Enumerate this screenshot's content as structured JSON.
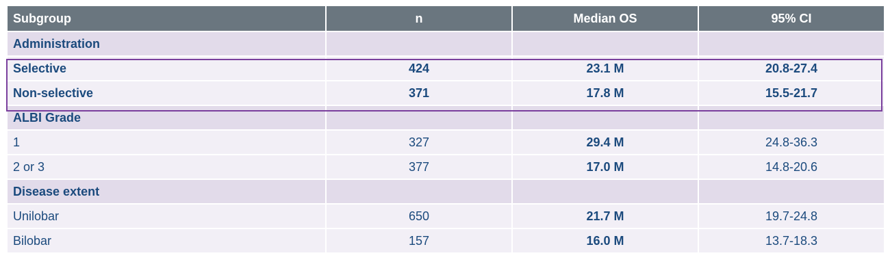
{
  "table": {
    "header": [
      "Subgroup",
      "n",
      "Median OS",
      "95% CI"
    ],
    "rows": [
      [
        "Administration"
      ],
      [
        "Selective",
        "424",
        "23.1 M",
        "20.8-27.4"
      ],
      [
        "Non-selective",
        "371",
        "17.8 M",
        "15.5-21.7"
      ],
      [
        "ALBI Grade"
      ],
      [
        "1",
        "327",
        "29.4 M",
        "24.8-36.3"
      ],
      [
        "2 or 3",
        "377",
        "17.0 M",
        "14.8-20.6"
      ],
      [
        "Disease extent"
      ],
      [
        "Unilobar",
        "650",
        "21.7 M",
        "19.7-24.8"
      ],
      [
        "Bilobar",
        "157",
        "16.0 M",
        "13.7-18.3"
      ]
    ]
  }
}
